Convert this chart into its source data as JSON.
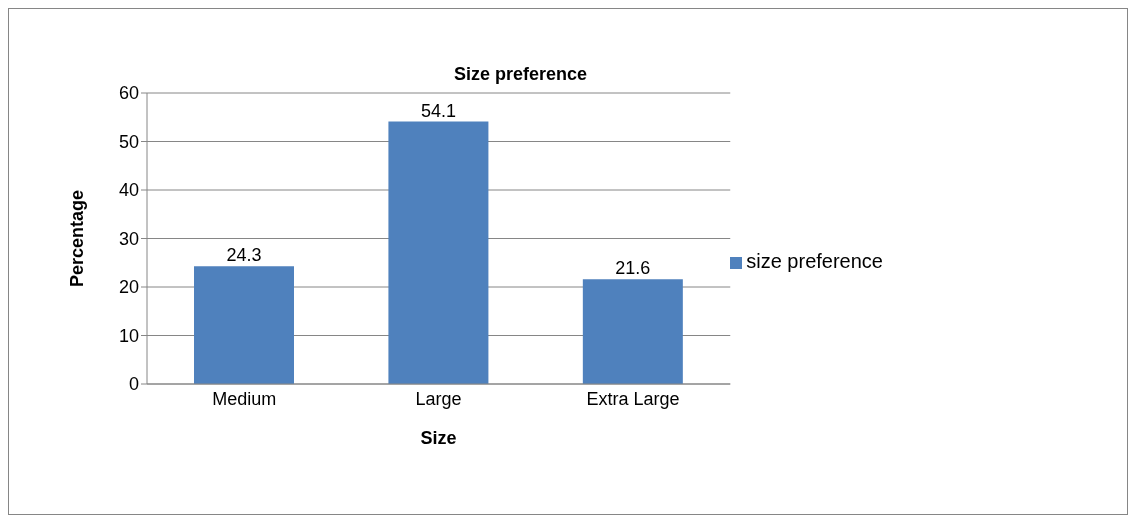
{
  "chart_data": {
    "type": "bar",
    "title": "Size preference",
    "xlabel": "Size",
    "ylabel": "Percentage",
    "categories": [
      "Medium",
      "Large",
      "Extra Large"
    ],
    "series": [
      {
        "name": "size preference",
        "color": "#4f81bd",
        "values": [
          24.3,
          54.1,
          21.6
        ]
      }
    ],
    "ylim": [
      0,
      60
    ],
    "yticks": [
      0,
      10,
      20,
      30,
      40,
      50,
      60
    ],
    "grid": "y",
    "legend": "right",
    "data_labels": true
  }
}
